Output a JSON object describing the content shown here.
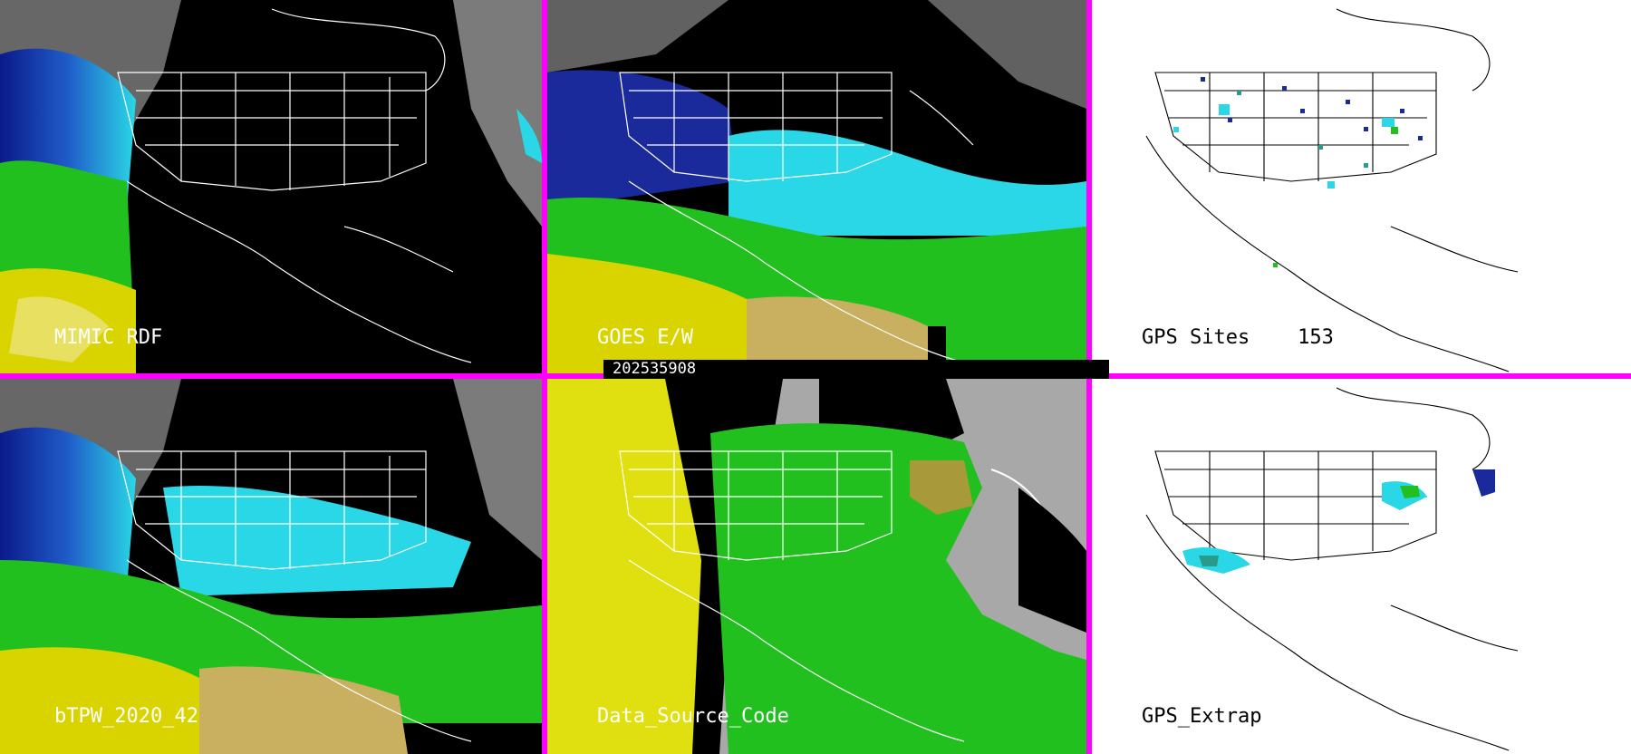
{
  "panels": [
    {
      "label": "MIMIC RDF",
      "style": "dark-partial"
    },
    {
      "label": "GOES E/W",
      "style": "dark-full"
    },
    {
      "label": "GPS Sites    153",
      "style": "white-sites"
    },
    {
      "label": "bTPW_2020_42",
      "style": "dark-full"
    },
    {
      "label": "Data_Source_Code",
      "style": "source"
    },
    {
      "label": "GPS_Extrap",
      "style": "white-extrap"
    }
  ],
  "timestamp": "202535908",
  "colors": {
    "divider": "#ff00ff",
    "moist_high": "#e6e600",
    "moist_mid": "#22c01e",
    "moist_low": "#2ad7e6",
    "dry": "#1a2a9a",
    "ocean_gray": "#9a9a9a"
  }
}
